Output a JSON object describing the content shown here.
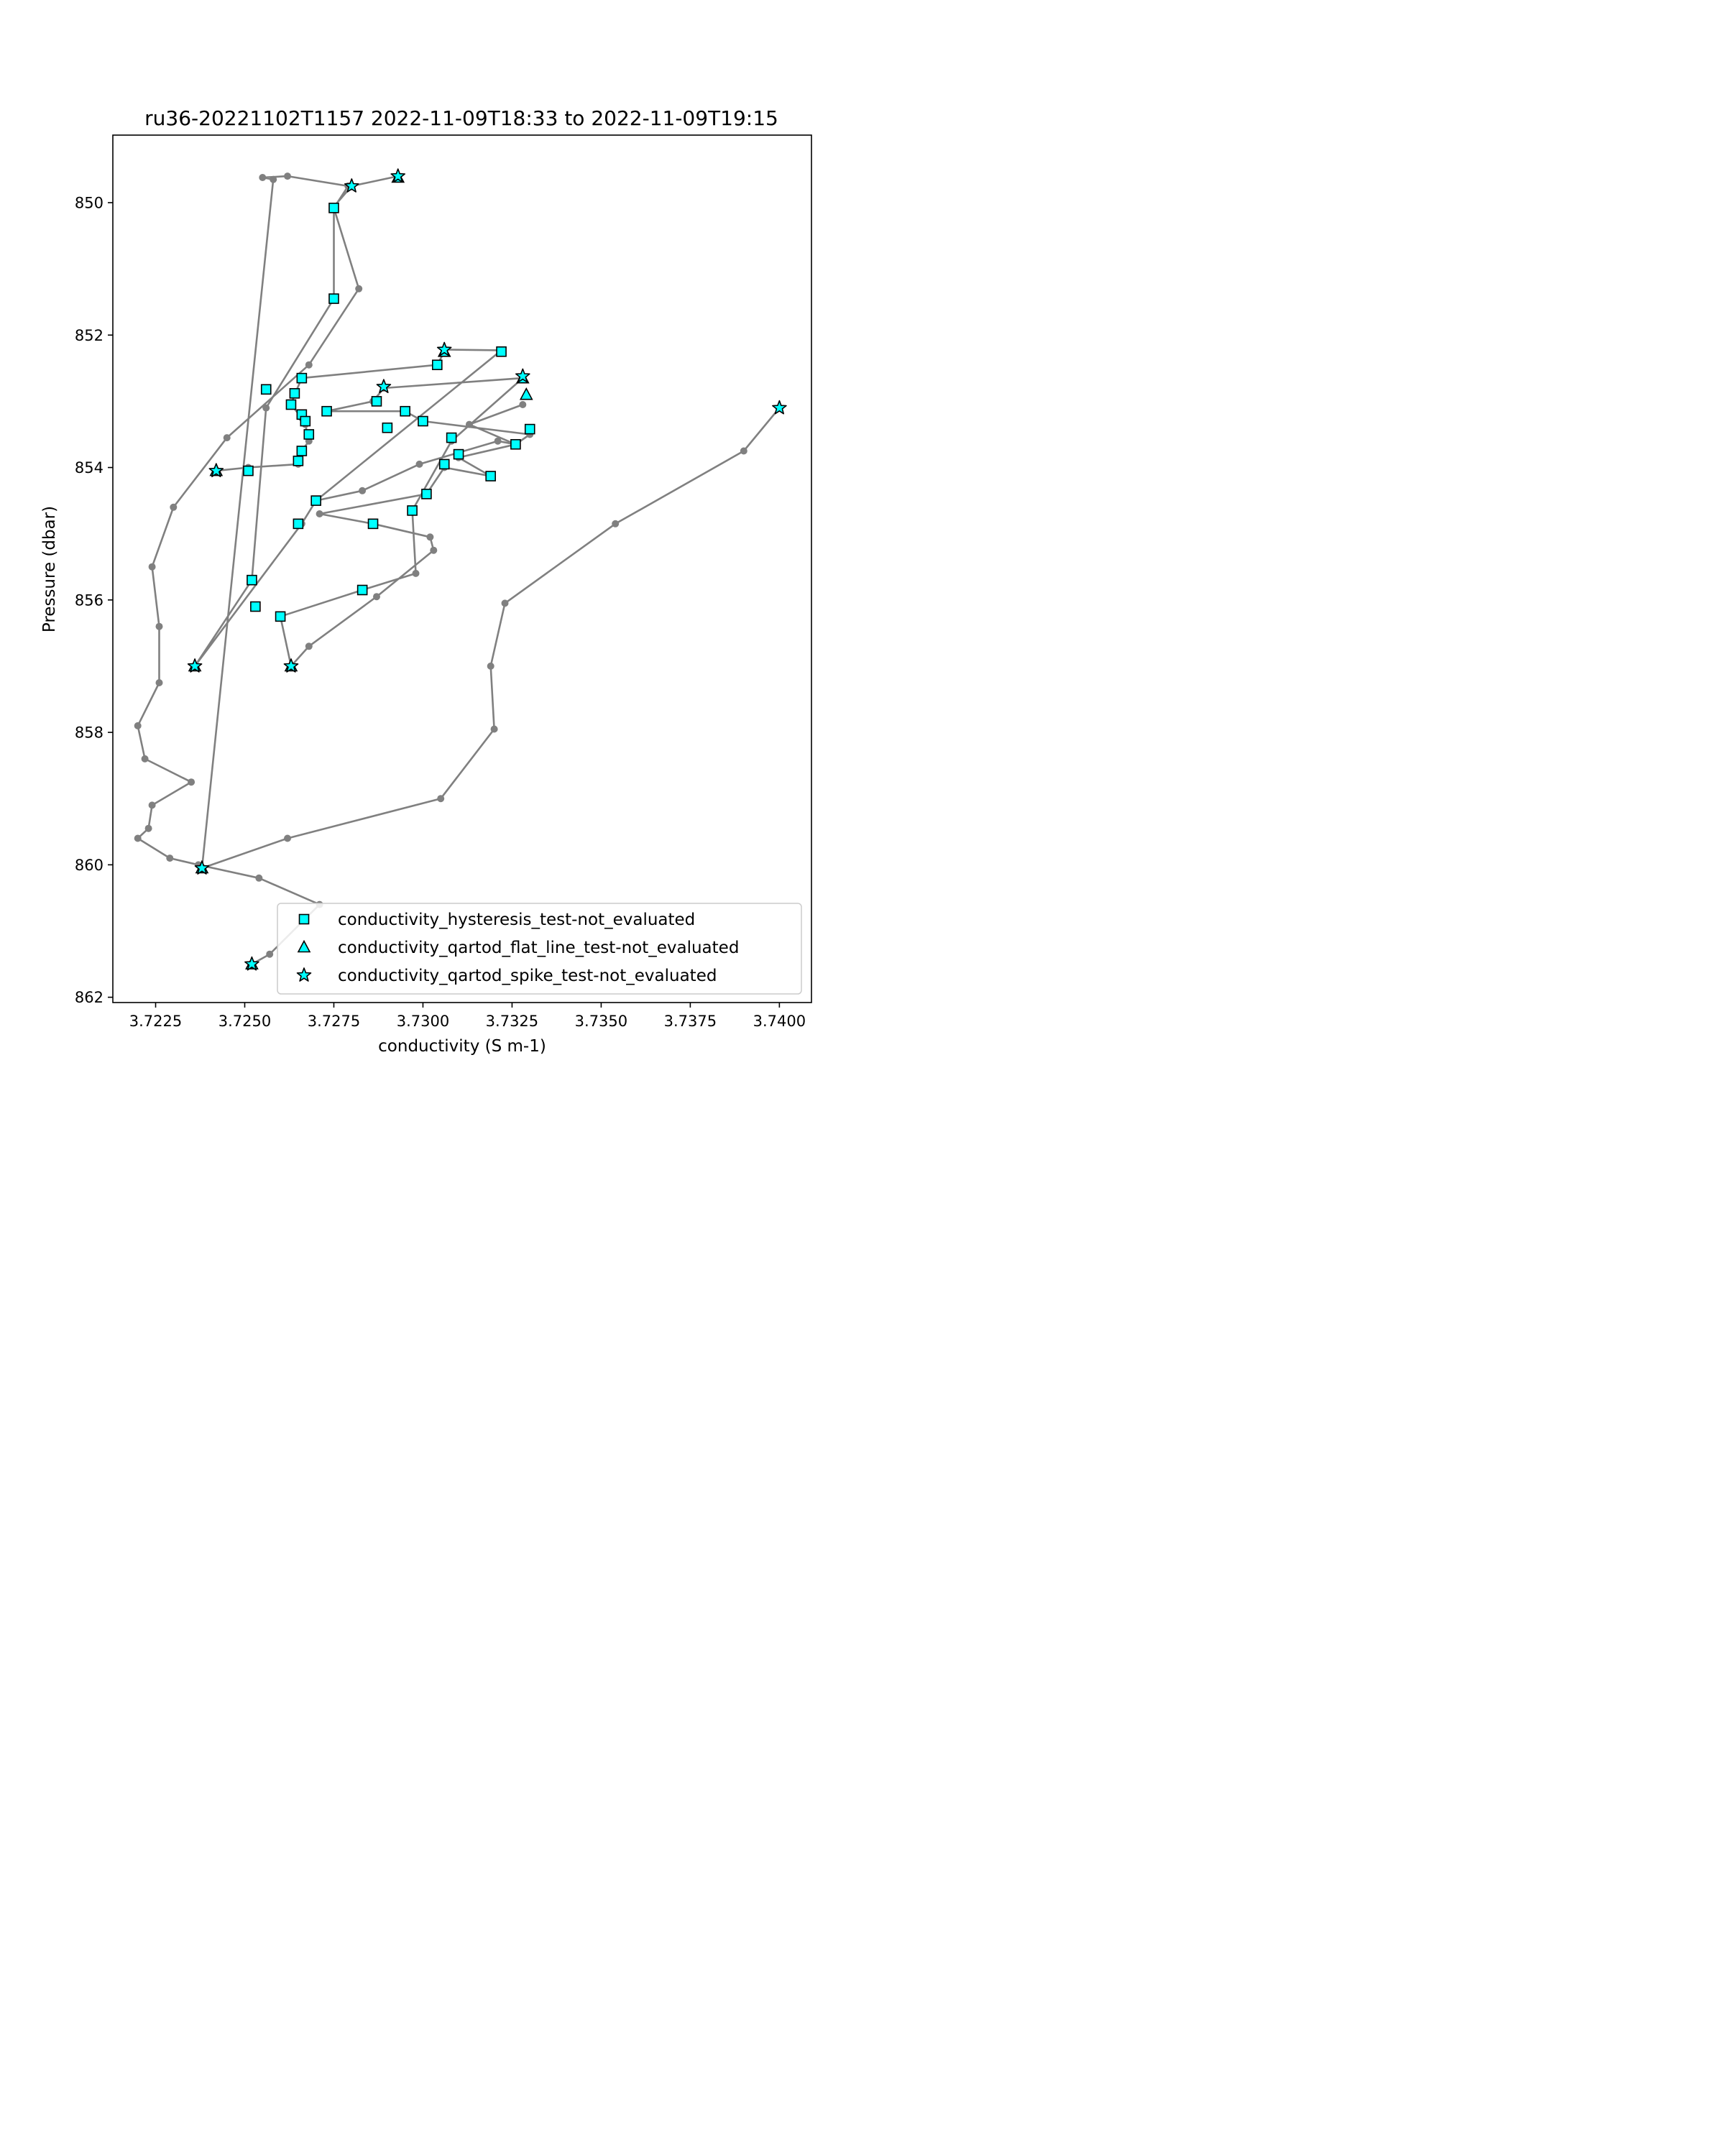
{
  "chart_data": {
    "type": "line",
    "title": "ru36-20221102T1157 2022-11-09T18:33 to 2022-11-09T19:15",
    "xlabel": "conductivity (S m-1)",
    "ylabel": "Pressure (dbar)",
    "xlim": [
      3.7213,
      3.7409
    ],
    "ylim": [
      862.08,
      848.98
    ],
    "y_inverted": true,
    "grid": false,
    "x_ticks": [
      "3.7225",
      "3.7250",
      "3.7275",
      "3.7300",
      "3.7325",
      "3.7350",
      "3.7375",
      "3.7400"
    ],
    "y_ticks": [
      "850",
      "852",
      "854",
      "856",
      "858",
      "860",
      "862"
    ],
    "profile": {
      "color": "#808080",
      "x": [
        3.7252,
        3.7257,
        3.7271,
        3.7254,
        3.7237,
        3.7229,
        3.722,
        3.7223,
        3.7224,
        3.7235,
        3.7222,
        3.722,
        3.7226,
        3.7226,
        3.7224,
        3.723,
        3.7245,
        3.7268,
        3.7282,
        3.7275,
        3.7279,
        3.7262,
        3.7255,
        3.7258,
        3.7238,
        3.7262,
        3.7305,
        3.732,
        3.7319,
        3.7323,
        3.7354,
        3.739,
        3.74
      ],
      "y": [
        861.5,
        861.35,
        860.6,
        860.2,
        860.0,
        859.9,
        859.6,
        859.45,
        859.1,
        858.75,
        858.4,
        857.9,
        857.25,
        856.4,
        855.5,
        854.6,
        853.55,
        852.45,
        851.3,
        850.08,
        849.75,
        849.6,
        849.62,
        849.65,
        860.05,
        859.6,
        859.0,
        857.95,
        857.0,
        856.05,
        854.85,
        853.75,
        853.1
      ]
    },
    "profile_segments": [
      {
        "color": "#808080",
        "x": [
          3.7242,
          3.7251,
          3.7265,
          3.7266,
          3.7268,
          3.7267,
          3.7266,
          3.7263,
          3.7264,
          3.7266,
          3.7304,
          3.7306
        ],
        "y": [
          854.05,
          854.0,
          853.95,
          853.75,
          853.6,
          853.35,
          853.25,
          853.05,
          852.9,
          852.65,
          852.45,
          852.25
        ]
      },
      {
        "color": "#808080",
        "x": [
          3.7306,
          3.7322
        ],
        "y": [
          852.22,
          852.23
        ]
      },
      {
        "color": "#808080",
        "x": [
          3.7322,
          3.727,
          3.7266,
          3.7236,
          3.7252,
          3.7256,
          3.7275
        ],
        "y": [
          852.23,
          854.5,
          854.85,
          857.0,
          855.7,
          853.1,
          851.45
        ]
      },
      {
        "color": "#808080",
        "x": [
          3.7275,
          3.7275,
          3.728,
          3.7293
        ],
        "y": [
          851.45,
          850.06,
          849.75,
          849.6
        ]
      },
      {
        "color": "#808080",
        "x": [
          3.7328,
          3.7289,
          3.7286,
          3.7273,
          3.7295,
          3.73,
          3.733,
          3.7326,
          3.7313,
          3.7328
        ],
        "y": [
          852.65,
          852.8,
          853.0,
          853.15,
          853.15,
          853.3,
          853.5,
          853.65,
          853.35,
          853.05
        ]
      },
      {
        "color": "#808080",
        "x": [
          3.7328,
          3.7308,
          3.7297,
          3.7298,
          3.7283,
          3.726,
          3.7263,
          3.7268,
          3.7287,
          3.7303,
          3.7302,
          3.7286,
          3.7271,
          3.7301,
          3.7306,
          3.7319
        ],
        "y": [
          852.65,
          853.6,
          854.65,
          855.6,
          855.85,
          856.25,
          857.0,
          856.7,
          855.95,
          855.25,
          855.05,
          854.85,
          854.7,
          854.4,
          854.0,
          854.13
        ]
      },
      {
        "color": "#808080",
        "x": [
          3.7319,
          3.731,
          3.7326,
          3.7321,
          3.7299,
          3.7283,
          3.727
        ],
        "y": [
          854.13,
          853.85,
          853.65,
          853.6,
          853.95,
          854.35,
          854.5
        ]
      }
    ],
    "series": [
      {
        "name": "conductivity_hysteresis_test-not_evaluated",
        "marker": "square",
        "color": "#00ffff",
        "x": [
          3.7275,
          3.7275,
          3.7256,
          3.7266,
          3.7264,
          3.7263,
          3.7266,
          3.7267,
          3.7268,
          3.7266,
          3.7265,
          3.7251,
          3.7304,
          3.7322,
          3.7273,
          3.7287,
          3.7295,
          3.73,
          3.729,
          3.7308,
          3.733,
          3.7326,
          3.731,
          3.7306,
          3.7319,
          3.7301,
          3.7297,
          3.727,
          3.7265,
          3.7286,
          3.7252,
          3.7253,
          3.7283,
          3.726
        ],
        "y": [
          850.08,
          851.45,
          852.82,
          852.65,
          852.88,
          853.05,
          853.2,
          853.3,
          853.5,
          853.75,
          853.9,
          854.05,
          852.45,
          852.25,
          853.15,
          853.0,
          853.15,
          853.3,
          853.4,
          853.55,
          853.42,
          853.65,
          853.8,
          853.95,
          854.13,
          854.4,
          854.65,
          854.5,
          854.85,
          854.85,
          855.7,
          856.1,
          855.85,
          856.25
        ]
      },
      {
        "name": "conductivity_qartod_flat_line_test-not_evaluated",
        "marker": "triangle",
        "color": "#00ffff",
        "x": [
          3.7293,
          3.7306,
          3.7328,
          3.7329,
          3.7242,
          3.7236,
          3.7263,
          3.7238,
          3.7252
        ],
        "y": [
          849.62,
          852.25,
          852.65,
          852.9,
          854.05,
          857.0,
          857.0,
          860.05,
          861.5
        ]
      },
      {
        "name": "conductivity_qartod_spike_test-not_evaluated",
        "marker": "star",
        "color": "#00ffff",
        "x": [
          3.7293,
          3.728,
          3.7306,
          3.7328,
          3.7289,
          3.74,
          3.7242,
          3.7236,
          3.7263,
          3.7238,
          3.7252
        ],
        "y": [
          849.6,
          849.75,
          852.22,
          852.62,
          852.78,
          853.1,
          854.05,
          857.0,
          857.0,
          860.05,
          861.5
        ]
      }
    ],
    "legend": {
      "placement": "lower-right",
      "entries": [
        "conductivity_hysteresis_test-not_evaluated",
        "conductivity_qartod_flat_line_test-not_evaluated",
        "conductivity_qartod_spike_test-not_evaluated"
      ]
    }
  }
}
